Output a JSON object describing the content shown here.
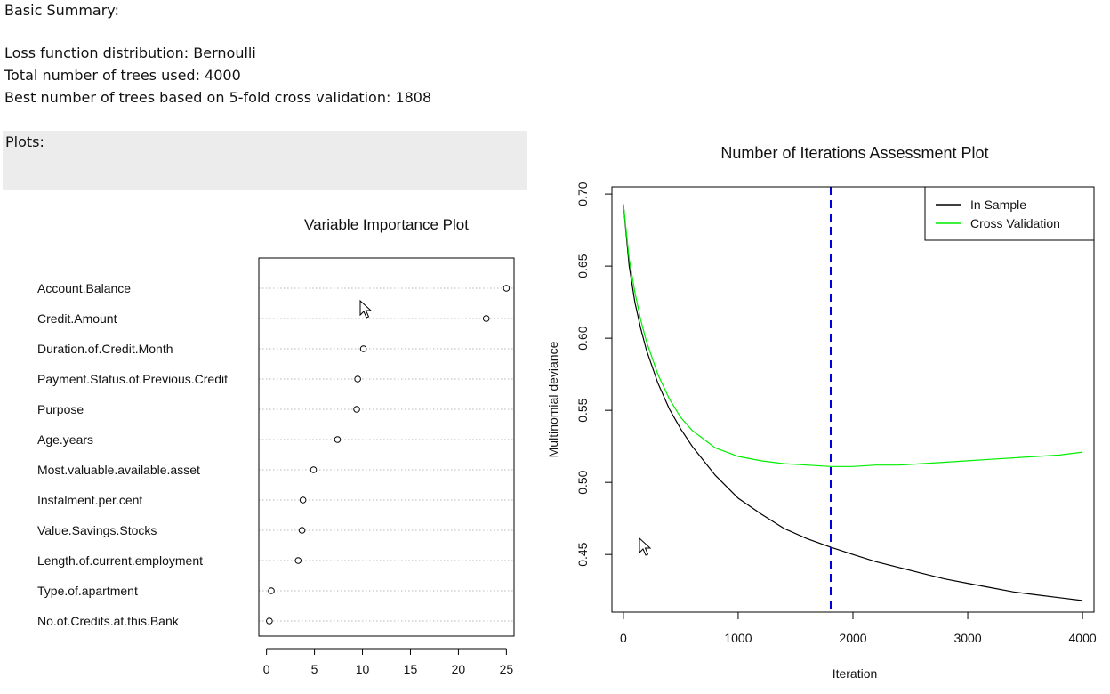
{
  "summary": {
    "heading": "Basic Summary:",
    "line1": "Loss function distribution: Bernoulli",
    "line2": "Total number of trees used: 4000",
    "line3": "Best number of trees based on 5-fold cross validation: 1808"
  },
  "plots_label": "Plots:",
  "chart_data": [
    {
      "type": "scatter",
      "title": "Variable Importance Plot",
      "categories": [
        "Account.Balance",
        "Credit.Amount",
        "Duration.of.Credit.Month",
        "Payment.Status.of.Previous.Credit",
        "Purpose",
        "Age.years",
        "Most.valuable.available.asset",
        "Instalment.per.cent",
        "Value.Savings.Stocks",
        "Length.of.current.employment",
        "Type.of.apartment",
        "No.of.Credits.at.this.Bank"
      ],
      "values": [
        25.0,
        22.9,
        10.1,
        9.5,
        9.4,
        7.4,
        4.9,
        3.8,
        3.7,
        3.3,
        0.5,
        0.3
      ],
      "xlim": [
        -0.8,
        25.8
      ],
      "xticks": [
        0,
        5,
        10,
        15,
        20,
        25
      ],
      "grid": "horizontal dotted"
    },
    {
      "type": "line",
      "title": "Number of Iterations Assessment Plot",
      "xlabel": "Iteration",
      "ylabel": "Multinomial deviance",
      "xlim": [
        -100,
        4100
      ],
      "ylim": [
        0.41,
        0.705
      ],
      "xticks": [
        0,
        1000,
        2000,
        3000,
        4000
      ],
      "yticks": [
        0.45,
        0.5,
        0.55,
        0.6,
        0.65,
        0.7
      ],
      "x": [
        0,
        50,
        100,
        150,
        200,
        300,
        400,
        500,
        600,
        800,
        1000,
        1200,
        1400,
        1600,
        1808,
        2000,
        2200,
        2400,
        2600,
        2800,
        3000,
        3200,
        3400,
        3600,
        3800,
        4000
      ],
      "series": [
        {
          "name": "In Sample",
          "color": "#000000",
          "values": [
            0.693,
            0.65,
            0.625,
            0.607,
            0.592,
            0.569,
            0.551,
            0.537,
            0.525,
            0.505,
            0.489,
            0.478,
            0.468,
            0.461,
            0.455,
            0.45,
            0.445,
            0.441,
            0.437,
            0.433,
            0.43,
            0.427,
            0.424,
            0.422,
            0.42,
            0.418
          ]
        },
        {
          "name": "Cross Validation",
          "color": "#00ee00",
          "values": [
            0.693,
            0.655,
            0.632,
            0.613,
            0.598,
            0.575,
            0.558,
            0.545,
            0.536,
            0.524,
            0.518,
            0.515,
            0.513,
            0.512,
            0.511,
            0.511,
            0.512,
            0.512,
            0.513,
            0.514,
            0.515,
            0.516,
            0.517,
            0.518,
            0.519,
            0.521
          ]
        }
      ],
      "vline": {
        "x": 1808,
        "color": "#0000dd",
        "style": "dashed"
      },
      "legend": "top-right"
    }
  ]
}
